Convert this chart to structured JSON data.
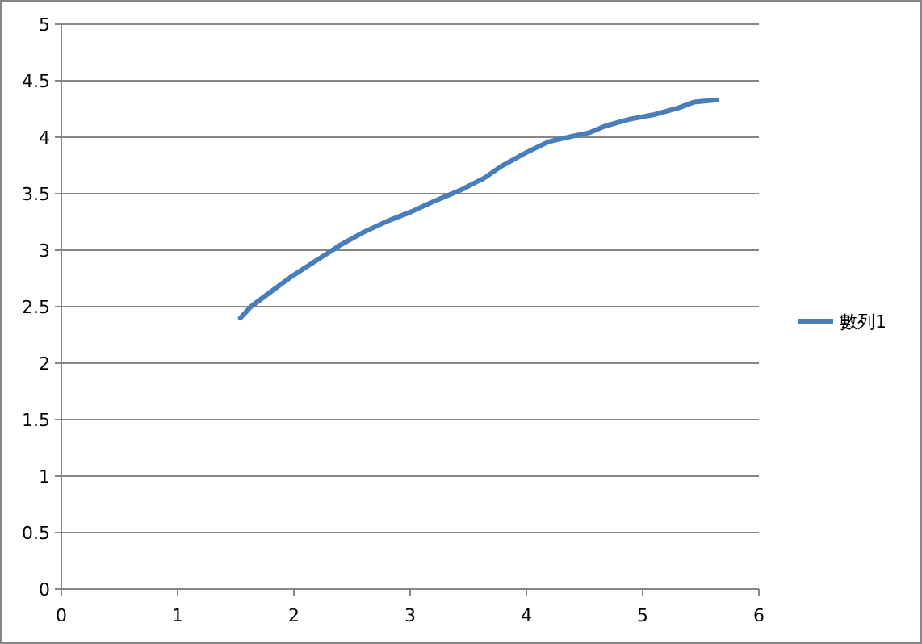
{
  "chart_data": {
    "type": "line",
    "xlim": [
      0,
      6
    ],
    "xticks": [
      0,
      1,
      2,
      3,
      4,
      5,
      6
    ],
    "ylim": [
      0,
      5
    ],
    "yticks": [
      0,
      0.5,
      1,
      1.5,
      2,
      2.5,
      3,
      3.5,
      4,
      4.5,
      5
    ],
    "grid": "y",
    "legend": "right",
    "marker": "none",
    "line_style": "solid",
    "x": [
      1.54,
      1.63,
      1.76,
      1.97,
      2.18,
      2.39,
      2.6,
      2.81,
      3.01,
      3.22,
      3.43,
      3.64,
      3.78,
      3.99,
      4.19,
      4.4,
      4.54,
      4.68,
      4.89,
      5.1,
      5.31,
      5.44,
      5.64
    ],
    "series": [
      {
        "name": "數列1",
        "color": "#4a7ebb",
        "values": [
          2.4,
          2.5,
          2.6,
          2.76,
          2.9,
          3.04,
          3.16,
          3.26,
          3.34,
          3.44,
          3.53,
          3.64,
          3.74,
          3.86,
          3.96,
          4.01,
          4.04,
          4.1,
          4.16,
          4.2,
          4.26,
          4.31,
          4.33
        ]
      }
    ]
  }
}
